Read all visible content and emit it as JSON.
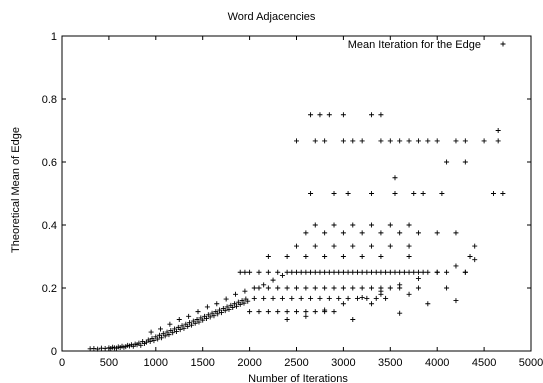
{
  "chart_data": {
    "type": "scatter",
    "title": "Word Adjacencies",
    "xlabel": "Number of Iterations",
    "ylabel": "Theoretical Mean of Edge",
    "xlim": [
      0,
      5000
    ],
    "ylim": [
      0,
      1
    ],
    "x_ticks": [
      "0",
      "500",
      "1000",
      "1500",
      "2000",
      "2500",
      "3000",
      "3500",
      "4000",
      "4500",
      "5000"
    ],
    "y_ticks": [
      "0",
      "0.2",
      "0.4",
      "0.6",
      "0.8",
      "1"
    ],
    "grid": false,
    "legend_position": "top-right",
    "marker": "plus",
    "series": [
      {
        "name": "Mean Iteration for the Edge",
        "color": "#000000",
        "points": [
          [
            300,
            0.007
          ],
          [
            340,
            0.008
          ],
          [
            380,
            0.006
          ],
          [
            420,
            0.009
          ],
          [
            460,
            0.008
          ],
          [
            500,
            0.01
          ],
          [
            520,
            0.008
          ],
          [
            540,
            0.012
          ],
          [
            560,
            0.01
          ],
          [
            580,
            0.009
          ],
          [
            600,
            0.013
          ],
          [
            620,
            0.011
          ],
          [
            640,
            0.015
          ],
          [
            660,
            0.012
          ],
          [
            680,
            0.014
          ],
          [
            700,
            0.018
          ],
          [
            720,
            0.016
          ],
          [
            740,
            0.02
          ],
          [
            760,
            0.015
          ],
          [
            780,
            0.022
          ],
          [
            800,
            0.02
          ],
          [
            820,
            0.025
          ],
          [
            840,
            0.018
          ],
          [
            860,
            0.03
          ],
          [
            880,
            0.024
          ],
          [
            900,
            0.028
          ],
          [
            920,
            0.035
          ],
          [
            940,
            0.03
          ],
          [
            960,
            0.04
          ],
          [
            980,
            0.033
          ],
          [
            1000,
            0.045
          ],
          [
            1020,
            0.038
          ],
          [
            1040,
            0.05
          ],
          [
            1060,
            0.042
          ],
          [
            1080,
            0.055
          ],
          [
            1100,
            0.048
          ],
          [
            1120,
            0.06
          ],
          [
            1140,
            0.052
          ],
          [
            1160,
            0.065
          ],
          [
            1180,
            0.058
          ],
          [
            1200,
            0.07
          ],
          [
            1220,
            0.062
          ],
          [
            1240,
            0.075
          ],
          [
            1260,
            0.068
          ],
          [
            1280,
            0.08
          ],
          [
            1300,
            0.072
          ],
          [
            1320,
            0.085
          ],
          [
            1340,
            0.078
          ],
          [
            1360,
            0.09
          ],
          [
            1380,
            0.082
          ],
          [
            1400,
            0.095
          ],
          [
            1420,
            0.088
          ],
          [
            1440,
            0.1
          ],
          [
            1460,
            0.092
          ],
          [
            1480,
            0.105
          ],
          [
            1500,
            0.098
          ],
          [
            1520,
            0.11
          ],
          [
            1540,
            0.103
          ],
          [
            1560,
            0.115
          ],
          [
            1580,
            0.108
          ],
          [
            1600,
            0.12
          ],
          [
            1620,
            0.112
          ],
          [
            1640,
            0.125
          ],
          [
            1660,
            0.118
          ],
          [
            1680,
            0.13
          ],
          [
            1700,
            0.122
          ],
          [
            1720,
            0.135
          ],
          [
            1740,
            0.128
          ],
          [
            1760,
            0.14
          ],
          [
            1780,
            0.132
          ],
          [
            1800,
            0.145
          ],
          [
            1820,
            0.138
          ],
          [
            1840,
            0.15
          ],
          [
            1860,
            0.142
          ],
          [
            1880,
            0.155
          ],
          [
            1900,
            0.148
          ],
          [
            1920,
            0.16
          ],
          [
            1940,
            0.152
          ],
          [
            1960,
            0.165
          ],
          [
            1980,
            0.158
          ],
          [
            950,
            0.06
          ],
          [
            1050,
            0.07
          ],
          [
            1150,
            0.085
          ],
          [
            1250,
            0.1
          ],
          [
            1350,
            0.11
          ],
          [
            1450,
            0.125
          ],
          [
            1550,
            0.14
          ],
          [
            1650,
            0.15
          ],
          [
            1750,
            0.165
          ],
          [
            1850,
            0.18
          ],
          [
            1950,
            0.19
          ],
          [
            2050,
            0.2
          ],
          [
            2150,
            0.21
          ],
          [
            2250,
            0.225
          ],
          [
            2350,
            0.24
          ],
          [
            2450,
            0.25
          ],
          [
            2550,
            0.25
          ],
          [
            2650,
            0.25
          ],
          [
            2750,
            0.25
          ],
          [
            2850,
            0.25
          ],
          [
            2950,
            0.25
          ],
          [
            3050,
            0.25
          ],
          [
            3150,
            0.25
          ],
          [
            3250,
            0.25
          ],
          [
            3350,
            0.25
          ],
          [
            3450,
            0.25
          ],
          [
            3550,
            0.25
          ],
          [
            3650,
            0.25
          ],
          [
            3750,
            0.25
          ],
          [
            3850,
            0.25
          ],
          [
            2000,
            0.125
          ],
          [
            2100,
            0.125
          ],
          [
            2200,
            0.125
          ],
          [
            2300,
            0.125
          ],
          [
            2400,
            0.125
          ],
          [
            2500,
            0.125
          ],
          [
            2600,
            0.125
          ],
          [
            2700,
            0.125
          ],
          [
            2800,
            0.125
          ],
          [
            2900,
            0.125
          ],
          [
            2050,
            0.167
          ],
          [
            2150,
            0.167
          ],
          [
            2250,
            0.167
          ],
          [
            2350,
            0.167
          ],
          [
            2450,
            0.167
          ],
          [
            2550,
            0.167
          ],
          [
            2650,
            0.167
          ],
          [
            2750,
            0.167
          ],
          [
            2850,
            0.167
          ],
          [
            2950,
            0.167
          ],
          [
            3050,
            0.167
          ],
          [
            3150,
            0.167
          ],
          [
            3250,
            0.167
          ],
          [
            3350,
            0.167
          ],
          [
            3450,
            0.167
          ],
          [
            2100,
            0.2
          ],
          [
            2200,
            0.2
          ],
          [
            2300,
            0.2
          ],
          [
            2400,
            0.2
          ],
          [
            2500,
            0.2
          ],
          [
            2600,
            0.2
          ],
          [
            2700,
            0.2
          ],
          [
            2800,
            0.2
          ],
          [
            2900,
            0.2
          ],
          [
            3000,
            0.2
          ],
          [
            3100,
            0.2
          ],
          [
            3200,
            0.2
          ],
          [
            3300,
            0.2
          ],
          [
            3400,
            0.2
          ],
          [
            3500,
            0.2
          ],
          [
            1900,
            0.25
          ],
          [
            1950,
            0.25
          ],
          [
            2000,
            0.25
          ],
          [
            2100,
            0.25
          ],
          [
            2200,
            0.25
          ],
          [
            2300,
            0.25
          ],
          [
            2400,
            0.25
          ],
          [
            2500,
            0.25
          ],
          [
            2600,
            0.25
          ],
          [
            2700,
            0.25
          ],
          [
            2800,
            0.25
          ],
          [
            2900,
            0.25
          ],
          [
            3000,
            0.25
          ],
          [
            3100,
            0.25
          ],
          [
            3200,
            0.25
          ],
          [
            3300,
            0.25
          ],
          [
            3400,
            0.25
          ],
          [
            3500,
            0.25
          ],
          [
            3600,
            0.25
          ],
          [
            3700,
            0.25
          ],
          [
            2200,
            0.3
          ],
          [
            2400,
            0.3
          ],
          [
            2600,
            0.3
          ],
          [
            2800,
            0.3
          ],
          [
            3000,
            0.3
          ],
          [
            3200,
            0.3
          ],
          [
            3400,
            0.3
          ],
          [
            2500,
            0.333
          ],
          [
            2700,
            0.333
          ],
          [
            2900,
            0.333
          ],
          [
            3100,
            0.333
          ],
          [
            3300,
            0.333
          ],
          [
            3500,
            0.333
          ],
          [
            3700,
            0.333
          ],
          [
            2600,
            0.375
          ],
          [
            2800,
            0.375
          ],
          [
            3000,
            0.375
          ],
          [
            3200,
            0.375
          ],
          [
            3400,
            0.375
          ],
          [
            3600,
            0.375
          ],
          [
            3800,
            0.375
          ],
          [
            2700,
            0.4
          ],
          [
            2900,
            0.4
          ],
          [
            3100,
            0.4
          ],
          [
            3300,
            0.4
          ],
          [
            3500,
            0.4
          ],
          [
            3700,
            0.4
          ],
          [
            4000,
            0.375
          ],
          [
            4200,
            0.375
          ],
          [
            4400,
            0.333
          ],
          [
            4300,
            0.25
          ],
          [
            4700,
            0.5
          ],
          [
            2650,
            0.5
          ],
          [
            2900,
            0.5
          ],
          [
            3050,
            0.5
          ],
          [
            3300,
            0.5
          ],
          [
            3550,
            0.5
          ],
          [
            3850,
            0.5
          ],
          [
            2650,
            0.75
          ],
          [
            2750,
            0.75
          ],
          [
            2850,
            0.75
          ],
          [
            3000,
            0.75
          ],
          [
            3300,
            0.75
          ],
          [
            3400,
            0.75
          ],
          [
            2500,
            0.667
          ],
          [
            2700,
            0.667
          ],
          [
            2800,
            0.667
          ],
          [
            3000,
            0.667
          ],
          [
            3100,
            0.667
          ],
          [
            3200,
            0.667
          ],
          [
            3400,
            0.667
          ],
          [
            3500,
            0.667
          ],
          [
            3600,
            0.667
          ],
          [
            3700,
            0.667
          ],
          [
            3800,
            0.667
          ],
          [
            3900,
            0.667
          ],
          [
            4000,
            0.667
          ],
          [
            4200,
            0.667
          ],
          [
            4300,
            0.667
          ],
          [
            4500,
            0.667
          ],
          [
            4650,
            0.667
          ],
          [
            4100,
            0.6
          ],
          [
            3700,
            0.3
          ],
          [
            3800,
            0.25
          ],
          [
            3900,
            0.25
          ],
          [
            4000,
            0.25
          ],
          [
            4100,
            0.25
          ],
          [
            4350,
            0.3
          ],
          [
            3100,
            0.1
          ],
          [
            3300,
            0.15
          ],
          [
            3400,
            0.18
          ],
          [
            3600,
            0.12
          ],
          [
            3800,
            0.2
          ],
          [
            4100,
            0.2
          ],
          [
            4200,
            0.16
          ],
          [
            3600,
            0.2
          ],
          [
            3700,
            0.18
          ],
          [
            3900,
            0.15
          ],
          [
            4300,
            0.25
          ],
          [
            2400,
            0.1
          ],
          [
            2600,
            0.11
          ],
          [
            2800,
            0.13
          ],
          [
            3000,
            0.15
          ],
          [
            3200,
            0.17
          ],
          [
            3400,
            0.19
          ],
          [
            3600,
            0.21
          ],
          [
            3800,
            0.23
          ],
          [
            4000,
            0.25
          ],
          [
            4200,
            0.27
          ],
          [
            4400,
            0.29
          ],
          [
            3550,
            0.55
          ],
          [
            3750,
            0.5
          ],
          [
            4050,
            0.5
          ],
          [
            4300,
            0.6
          ],
          [
            4600,
            0.5
          ],
          [
            4650,
            0.7
          ]
        ]
      }
    ]
  }
}
